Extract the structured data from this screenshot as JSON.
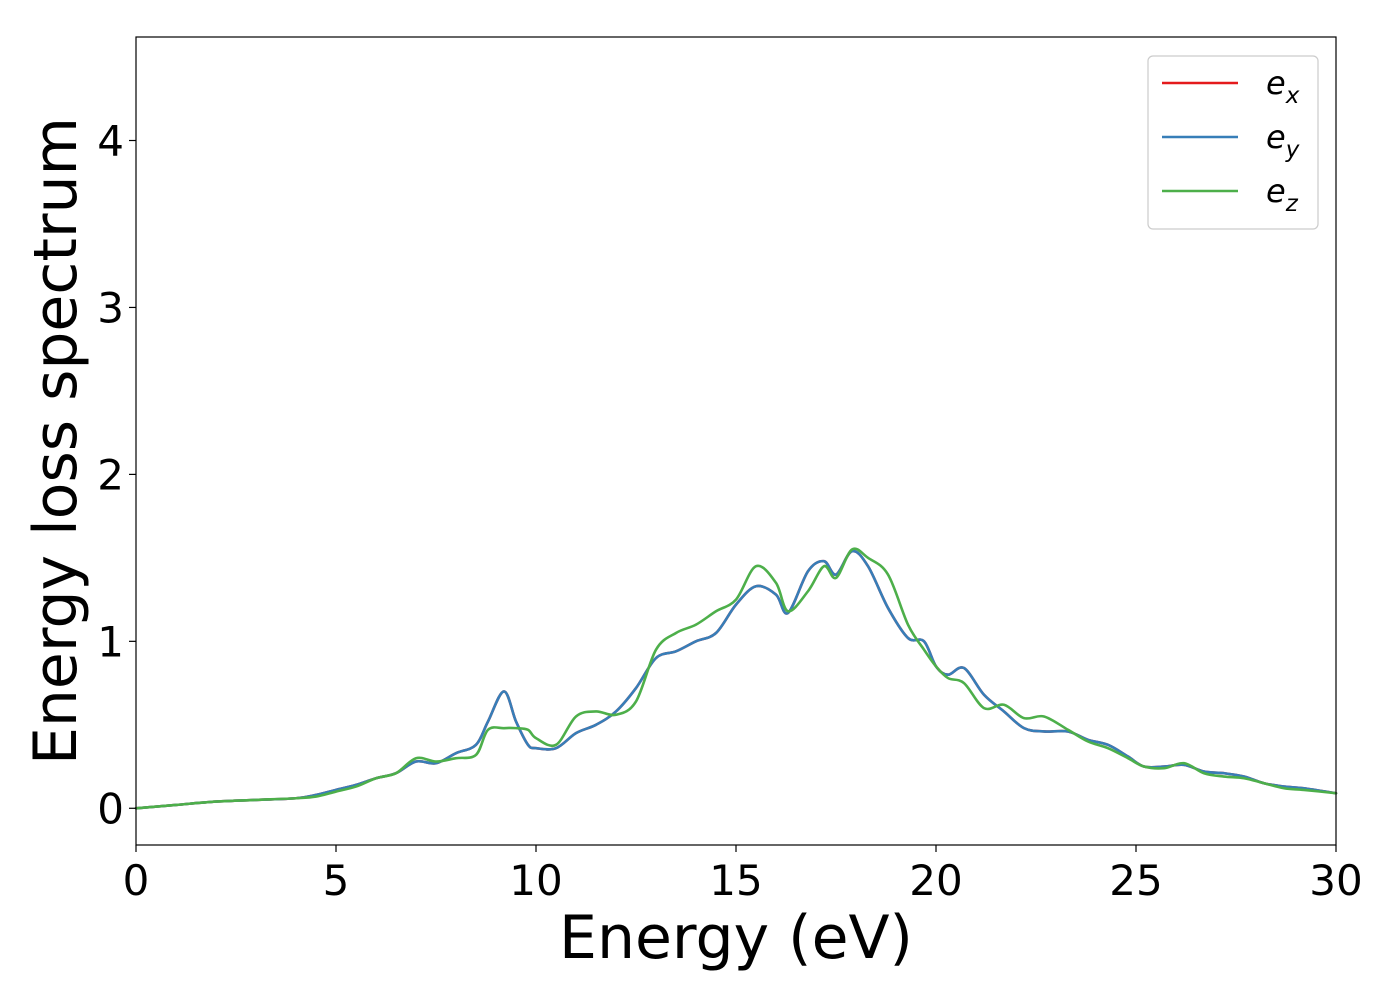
{
  "chart_data": {
    "type": "line",
    "xlabel": "Energy (eV)",
    "ylabel": "Energy loss spectrum",
    "xlim": [
      0,
      30
    ],
    "ylim": [
      -0.22,
      4.62
    ],
    "xticks": [
      "0",
      "5",
      "10",
      "15",
      "20",
      "25",
      "30"
    ],
    "yticks": [
      "0",
      "1",
      "2",
      "3",
      "4"
    ],
    "grid": false,
    "legend_position": "top-right",
    "legend": [
      {
        "base": "e",
        "sub": "x",
        "color": "#e41a1c"
      },
      {
        "base": "e",
        "sub": "y",
        "color": "#377eb8"
      },
      {
        "base": "e",
        "sub": "z",
        "color": "#4daf4a"
      }
    ],
    "x": [
      0,
      1,
      2,
      3,
      4,
      4.5,
      5,
      5.5,
      6,
      6.5,
      7,
      7.5,
      8,
      8.5,
      8.8,
      9.2,
      9.5,
      9.8,
      10,
      10.5,
      11,
      11.5,
      12,
      12.5,
      13,
      13.5,
      14,
      14.5,
      15,
      15.5,
      16,
      16.3,
      16.8,
      17.2,
      17.5,
      17.9,
      18.3,
      18.8,
      19.3,
      19.7,
      20,
      20.3,
      20.7,
      21.2,
      21.7,
      22.2,
      22.7,
      23.3,
      23.8,
      24.3,
      24.8,
      25.2,
      25.7,
      26.2,
      26.7,
      27.2,
      27.7,
      28.2,
      28.7,
      29.2,
      30
    ],
    "series": [
      {
        "name": "e_x",
        "color": "#e41a1c",
        "values": [
          0,
          0.02,
          0.04,
          0.05,
          0.06,
          0.08,
          0.11,
          0.14,
          0.18,
          0.21,
          0.28,
          0.27,
          0.33,
          0.38,
          0.52,
          0.7,
          0.52,
          0.38,
          0.36,
          0.36,
          0.45,
          0.5,
          0.58,
          0.72,
          0.9,
          0.94,
          1.0,
          1.05,
          1.22,
          1.33,
          1.28,
          1.17,
          1.42,
          1.48,
          1.4,
          1.54,
          1.45,
          1.2,
          1.02,
          1.0,
          0.85,
          0.8,
          0.84,
          0.68,
          0.58,
          0.48,
          0.46,
          0.46,
          0.41,
          0.38,
          0.31,
          0.25,
          0.25,
          0.26,
          0.22,
          0.21,
          0.19,
          0.15,
          0.13,
          0.12,
          0.09
        ]
      },
      {
        "name": "e_y",
        "color": "#377eb8",
        "values": [
          0,
          0.02,
          0.04,
          0.05,
          0.06,
          0.08,
          0.11,
          0.14,
          0.18,
          0.21,
          0.28,
          0.27,
          0.33,
          0.38,
          0.52,
          0.7,
          0.52,
          0.38,
          0.36,
          0.36,
          0.45,
          0.5,
          0.58,
          0.72,
          0.9,
          0.94,
          1.0,
          1.05,
          1.22,
          1.33,
          1.28,
          1.17,
          1.42,
          1.48,
          1.4,
          1.54,
          1.45,
          1.2,
          1.02,
          1.0,
          0.85,
          0.8,
          0.84,
          0.68,
          0.58,
          0.48,
          0.46,
          0.46,
          0.41,
          0.38,
          0.31,
          0.25,
          0.25,
          0.26,
          0.22,
          0.21,
          0.19,
          0.15,
          0.13,
          0.12,
          0.09
        ]
      },
      {
        "name": "e_z",
        "color": "#4daf4a",
        "values": [
          0,
          0.02,
          0.04,
          0.05,
          0.06,
          0.07,
          0.1,
          0.13,
          0.18,
          0.21,
          0.3,
          0.28,
          0.3,
          0.32,
          0.47,
          0.48,
          0.48,
          0.47,
          0.42,
          0.38,
          0.55,
          0.58,
          0.56,
          0.64,
          0.95,
          1.05,
          1.1,
          1.18,
          1.25,
          1.45,
          1.35,
          1.18,
          1.3,
          1.45,
          1.38,
          1.55,
          1.5,
          1.4,
          1.1,
          0.95,
          0.85,
          0.78,
          0.75,
          0.6,
          0.62,
          0.54,
          0.55,
          0.47,
          0.4,
          0.36,
          0.3,
          0.25,
          0.24,
          0.27,
          0.21,
          0.19,
          0.18,
          0.15,
          0.12,
          0.11,
          0.09
        ]
      }
    ]
  }
}
